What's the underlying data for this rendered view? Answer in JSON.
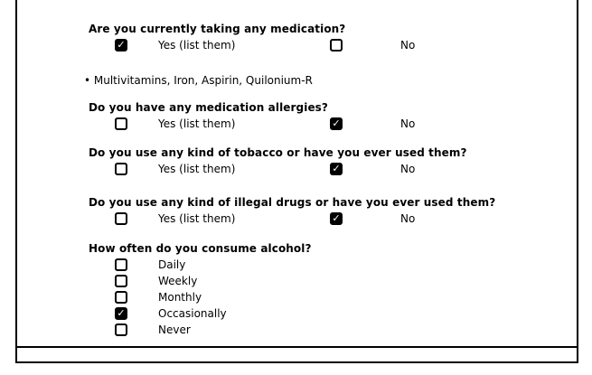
{
  "icons": {
    "check": "✓"
  },
  "colors": {
    "page_border": "#000000",
    "text": "#000000",
    "checkbox_checked_bg": "#000000",
    "checkmark": "#ffffff"
  },
  "form": {
    "questions": [
      {
        "label": "Are you currently taking any medication?",
        "type": "yes_no",
        "options": [
          {
            "label": "Yes (list them)",
            "checked": true
          },
          {
            "label": "No",
            "checked": false
          }
        ],
        "answer_note": "• Multivitamins, Iron, Aspirin, Quilonium-R"
      },
      {
        "label": "Do you have any medication allergies?",
        "type": "yes_no",
        "options": [
          {
            "label": "Yes (list them)",
            "checked": false
          },
          {
            "label": "No",
            "checked": true
          }
        ]
      },
      {
        "label": "Do you use any kind of tobacco or have you ever used them?",
        "type": "yes_no",
        "options": [
          {
            "label": "Yes (list them)",
            "checked": false
          },
          {
            "label": "No",
            "checked": true
          }
        ]
      },
      {
        "label": "Do you use any kind of illegal drugs or have you ever used them?",
        "type": "yes_no",
        "options": [
          {
            "label": "Yes (list them)",
            "checked": false
          },
          {
            "label": "No",
            "checked": true
          }
        ]
      },
      {
        "label": "How often do you consume alcohol?",
        "type": "single_choice",
        "options": [
          {
            "label": "Daily",
            "checked": false
          },
          {
            "label": "Weekly",
            "checked": false
          },
          {
            "label": "Monthly",
            "checked": false
          },
          {
            "label": "Occasionally",
            "checked": true
          },
          {
            "label": "Never",
            "checked": false
          }
        ]
      }
    ]
  }
}
